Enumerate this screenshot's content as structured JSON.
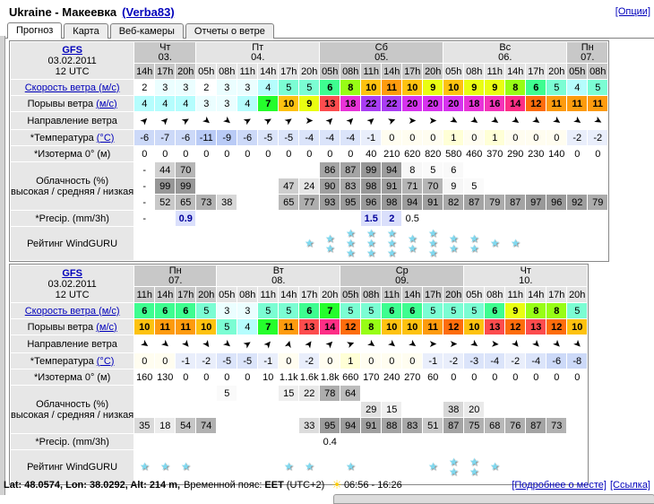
{
  "header": {
    "title": "Ukraine - Макеевка",
    "user": "(Verba83)",
    "options": "[Опции]"
  },
  "tabs": [
    {
      "label": "Прогноз",
      "active": true
    },
    {
      "label": "Карта",
      "active": false
    },
    {
      "label": "Веб-камеры",
      "active": false
    },
    {
      "label": "Отчеты о ветре",
      "active": false
    }
  ],
  "labels": {
    "speed_link": "Скорость ветра (м/с)",
    "gusts_text": "Порывы ветра ",
    "gusts_link": "(м/с)",
    "direction": "Направление ветра",
    "temp_text": "*Температура ",
    "temp_link": "(°C)",
    "isotherm": "*Изотерма 0° (м)",
    "cloud_line1": "Облачность (%)",
    "cloud_line2": "высокая / средняя / низкая",
    "precip": "*Precip. (mm/3h)",
    "rating": "Рейтинг WindGURU"
  },
  "tables": [
    {
      "model": "GFS",
      "date": "03.02.2011",
      "run": "12 UTC",
      "days": [
        {
          "name": "Чт",
          "date": "03.",
          "span": 3
        },
        {
          "name": "Пт",
          "date": "04.",
          "span": 6
        },
        {
          "name": "Сб",
          "date": "05.",
          "span": 6
        },
        {
          "name": "Вс",
          "date": "06.",
          "span": 6
        },
        {
          "name": "Пн",
          "date": "07.",
          "span": 2
        }
      ],
      "hours": [
        "14h",
        "17h",
        "20h",
        "05h",
        "08h",
        "11h",
        "14h",
        "17h",
        "20h",
        "05h",
        "08h",
        "11h",
        "14h",
        "17h",
        "20h",
        "05h",
        "08h",
        "11h",
        "14h",
        "17h",
        "20h",
        "05h",
        "08h"
      ],
      "speed": [
        2,
        3,
        3,
        2,
        3,
        3,
        4,
        5,
        5,
        6,
        8,
        10,
        11,
        10,
        9,
        10,
        9,
        9,
        8,
        6,
        5,
        4,
        5
      ],
      "gusts": [
        4,
        4,
        4,
        3,
        3,
        4,
        7,
        10,
        9,
        13,
        18,
        22,
        22,
        20,
        20,
        20,
        18,
        16,
        14,
        12,
        11,
        11,
        11
      ],
      "dir_deg": [
        -45,
        -45,
        -30,
        40,
        40,
        -30,
        -30,
        -35,
        0,
        -45,
        -45,
        -40,
        -20,
        0,
        0,
        30,
        35,
        35,
        35,
        35,
        35,
        35,
        30
      ],
      "temp": [
        -6,
        -7,
        -6,
        -11,
        -9,
        -6,
        -5,
        -5,
        -4,
        -4,
        -4,
        -1,
        0,
        0,
        0,
        1,
        0,
        1,
        0,
        0,
        0,
        -2,
        -2
      ],
      "isotherm": [
        "0",
        "0",
        "0",
        "0",
        "0",
        "0",
        "0",
        "0",
        "0",
        "0",
        "0",
        "40",
        "210",
        "620",
        "820",
        "580",
        "460",
        "370",
        "290",
        "230",
        "140",
        "0",
        "0"
      ],
      "cloud_high": [
        "-",
        "44",
        "70",
        "",
        "",
        "",
        "",
        "",
        "",
        "86",
        "87",
        "99",
        "94",
        "8",
        "5",
        "6",
        "",
        "",
        "",
        "",
        "",
        "",
        ""
      ],
      "cloud_mid": [
        "-",
        "99",
        "99",
        "",
        "",
        "",
        "",
        "47",
        "24",
        "90",
        "83",
        "98",
        "91",
        "71",
        "70",
        "9",
        "5",
        "",
        "",
        "",
        "",
        "",
        ""
      ],
      "cloud_low": [
        "-",
        "52",
        "65",
        "73",
        "38",
        "",
        "",
        "65",
        "77",
        "93",
        "95",
        "96",
        "98",
        "94",
        "91",
        "82",
        "87",
        "79",
        "87",
        "97",
        "96",
        "92",
        "79"
      ],
      "precip": [
        "-",
        "",
        "0.9",
        "",
        "",
        "",
        "",
        "",
        "",
        "",
        "",
        "1.5",
        "2",
        "0.5",
        "",
        "",
        "",
        "",
        "",
        "",
        "",
        "",
        ""
      ],
      "rating": [
        0,
        0,
        0,
        0,
        0,
        0,
        0,
        0,
        1,
        2,
        3,
        3,
        3,
        2,
        3,
        2,
        2,
        1,
        1,
        0,
        0,
        0,
        0
      ]
    },
    {
      "model": "GFS",
      "date": "03.02.2011",
      "run": "12 UTC",
      "days": [
        {
          "name": "Пн",
          "date": "07.",
          "span": 4
        },
        {
          "name": "Вт",
          "date": "08.",
          "span": 6
        },
        {
          "name": "Ср",
          "date": "09.",
          "span": 6
        },
        {
          "name": "Чт",
          "date": "10.",
          "span": 6
        }
      ],
      "hours": [
        "11h",
        "14h",
        "17h",
        "20h",
        "05h",
        "08h",
        "11h",
        "14h",
        "17h",
        "20h",
        "05h",
        "08h",
        "11h",
        "14h",
        "17h",
        "20h",
        "05h",
        "08h",
        "11h",
        "14h",
        "17h",
        "20h"
      ],
      "speed": [
        6,
        6,
        6,
        5,
        3,
        3,
        5,
        5,
        6,
        7,
        5,
        5,
        6,
        6,
        5,
        5,
        5,
        6,
        9,
        8,
        8,
        5
      ],
      "gusts": [
        10,
        11,
        11,
        10,
        5,
        4,
        7,
        11,
        13,
        14,
        12,
        8,
        10,
        10,
        11,
        12,
        10,
        13,
        12,
        13,
        12,
        10
      ],
      "dir_deg": [
        35,
        40,
        50,
        55,
        40,
        -35,
        -50,
        -75,
        -55,
        -45,
        -20,
        35,
        40,
        35,
        0,
        0,
        35,
        5,
        50,
        45,
        45,
        45
      ],
      "temp": [
        0,
        0,
        -1,
        -2,
        -5,
        -5,
        -1,
        0,
        -2,
        0,
        1,
        0,
        0,
        0,
        -1,
        -2,
        -3,
        -4,
        -2,
        -4,
        -6,
        -8
      ],
      "isotherm": [
        "160",
        "130",
        "0",
        "0",
        "0",
        "0",
        "10",
        "1.1k",
        "1.6k",
        "1.8k",
        "660",
        "170",
        "240",
        "270",
        "60",
        "0",
        "0",
        "0",
        "0",
        "0",
        "0",
        "0"
      ],
      "cloud_high": [
        "",
        "",
        "",
        "",
        "5",
        "",
        "",
        "15",
        "22",
        "78",
        "64",
        "",
        "",
        "",
        "",
        "",
        "",
        "",
        "",
        "",
        "",
        ""
      ],
      "cloud_mid": [
        "",
        "",
        "",
        "",
        "",
        "",
        "",
        "",
        "",
        "",
        "",
        "29",
        "15",
        "",
        "",
        "38",
        "20",
        "",
        "",
        "",
        "",
        ""
      ],
      "cloud_low": [
        "35",
        "18",
        "54",
        "74",
        "",
        "",
        "",
        "",
        "33",
        "95",
        "94",
        "91",
        "88",
        "83",
        "51",
        "87",
        "75",
        "68",
        "76",
        "87",
        "73",
        ""
      ],
      "precip": [
        "",
        "",
        "",
        "",
        "",
        "",
        "",
        "",
        "",
        "0.4",
        "",
        "",
        "",
        "",
        "",
        "",
        "",
        "",
        "",
        "",
        "",
        ""
      ],
      "rating": [
        1,
        1,
        1,
        0,
        0,
        0,
        0,
        1,
        1,
        0,
        1,
        0,
        0,
        0,
        1,
        2,
        2,
        1,
        0,
        0,
        0,
        0
      ]
    }
  ],
  "footer": {
    "coords": "Lat: 48.0574, Lon: 38.0292, Alt: 214 m,",
    "tz_label": "Временной пояс:",
    "tz_value": "EET",
    "tz_offset": "(UTC+2)",
    "sun_times": "06:56 - 16:26",
    "details_link": "[Подробнее о месте]",
    "url_link": "[Ссылка]"
  }
}
